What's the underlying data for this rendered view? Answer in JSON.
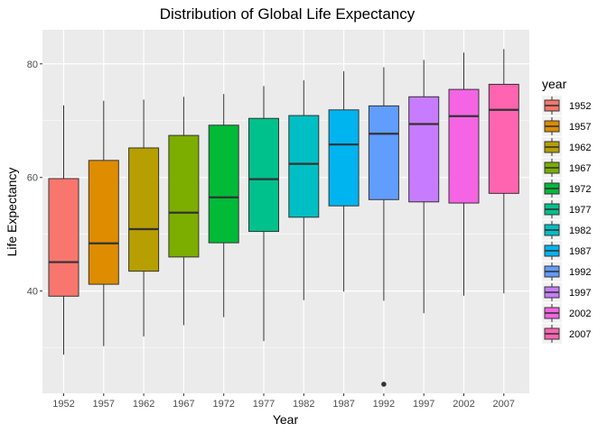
{
  "chart_data": {
    "type": "box",
    "title": "Distribution of Global Life Expectancy",
    "xlabel": "Year",
    "ylabel": "Life Expectancy",
    "ylim": [
      22,
      86
    ],
    "yticks": [
      40,
      60,
      80
    ],
    "grid": true,
    "legend": {
      "title": "year",
      "placement": "right",
      "entries": [
        "1952",
        "1957",
        "1962",
        "1967",
        "1972",
        "1977",
        "1982",
        "1987",
        "1992",
        "1997",
        "2002",
        "2007"
      ]
    },
    "categories": [
      "1952",
      "1957",
      "1962",
      "1967",
      "1972",
      "1977",
      "1982",
      "1987",
      "1992",
      "1997",
      "2002",
      "2007"
    ],
    "colors": [
      "#F8766D",
      "#DE8C00",
      "#B79F00",
      "#7CAE00",
      "#00BA38",
      "#00C08B",
      "#00BFC4",
      "#00B4F0",
      "#619CFF",
      "#C77CFF",
      "#F564E3",
      "#FF64B0"
    ],
    "boxes": [
      {
        "category": "1952",
        "min": 28.8,
        "q1": 39.1,
        "median": 45.1,
        "q3": 59.8,
        "max": 72.7,
        "outliers": []
      },
      {
        "category": "1957",
        "min": 30.3,
        "q1": 41.2,
        "median": 48.4,
        "q3": 63.0,
        "max": 73.5,
        "outliers": []
      },
      {
        "category": "1962",
        "min": 32.0,
        "q1": 43.5,
        "median": 50.9,
        "q3": 65.2,
        "max": 73.7,
        "outliers": []
      },
      {
        "category": "1967",
        "min": 34.0,
        "q1": 46.0,
        "median": 53.8,
        "q3": 67.4,
        "max": 74.2,
        "outliers": []
      },
      {
        "category": "1972",
        "min": 35.4,
        "q1": 48.5,
        "median": 56.5,
        "q3": 69.2,
        "max": 74.7,
        "outliers": []
      },
      {
        "category": "1977",
        "min": 31.2,
        "q1": 50.5,
        "median": 59.7,
        "q3": 70.4,
        "max": 76.1,
        "outliers": []
      },
      {
        "category": "1982",
        "min": 38.4,
        "q1": 53.0,
        "median": 62.4,
        "q3": 70.9,
        "max": 77.1,
        "outliers": []
      },
      {
        "category": "1987",
        "min": 39.9,
        "q1": 55.0,
        "median": 65.8,
        "q3": 71.9,
        "max": 78.7,
        "outliers": []
      },
      {
        "category": "1992",
        "min": 38.3,
        "q1": 56.1,
        "median": 67.7,
        "q3": 72.6,
        "max": 79.4,
        "outliers": [
          23.6
        ]
      },
      {
        "category": "1997",
        "min": 36.1,
        "q1": 55.7,
        "median": 69.4,
        "q3": 74.2,
        "max": 80.7,
        "outliers": []
      },
      {
        "category": "2002",
        "min": 39.2,
        "q1": 55.5,
        "median": 70.8,
        "q3": 75.5,
        "max": 82.0,
        "outliers": []
      },
      {
        "category": "2007",
        "min": 39.6,
        "q1": 57.2,
        "median": 71.9,
        "q3": 76.4,
        "max": 82.6,
        "outliers": []
      }
    ]
  }
}
